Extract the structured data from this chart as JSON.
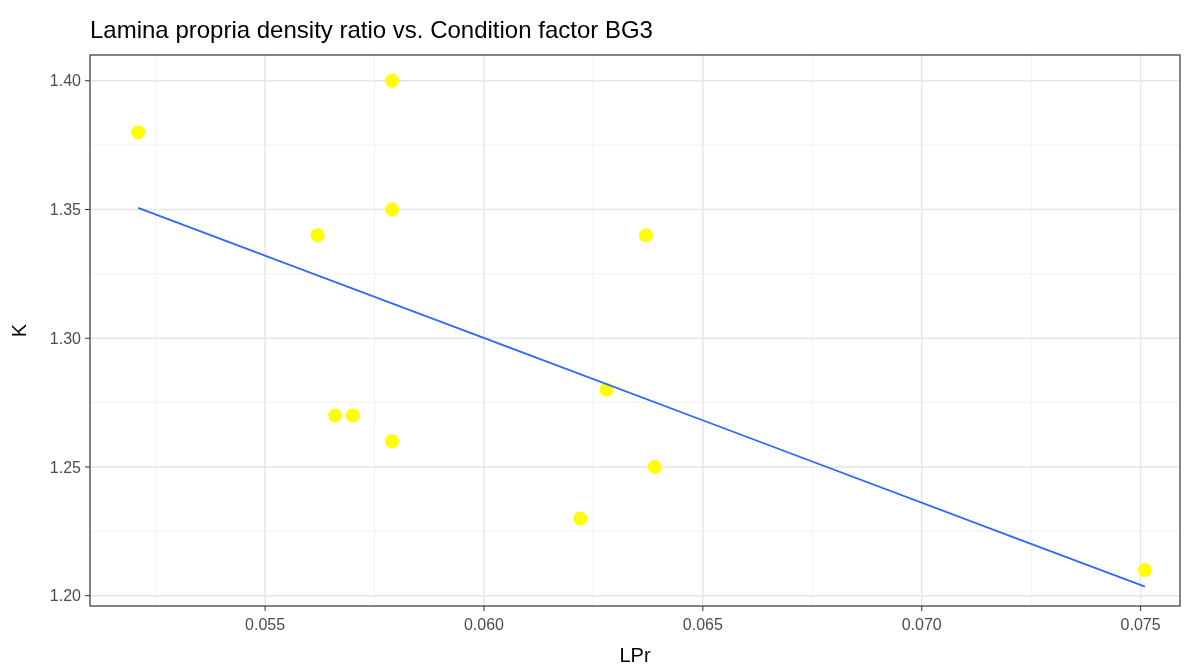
{
  "chart_data": {
    "type": "scatter",
    "title": "Lamina propria density ratio vs. Condition factor BG3",
    "xlabel": "LPr",
    "ylabel": "K",
    "xlim": [
      0.051,
      0.0759
    ],
    "ylim": [
      1.196,
      1.41
    ],
    "xticks": [
      {
        "value": 0.055,
        "label": "0.055"
      },
      {
        "value": 0.06,
        "label": "0.060"
      },
      {
        "value": 0.065,
        "label": "0.065"
      },
      {
        "value": 0.07,
        "label": "0.070"
      },
      {
        "value": 0.075,
        "label": "0.075"
      }
    ],
    "yticks": [
      {
        "value": 1.2,
        "label": "1.20"
      },
      {
        "value": 1.25,
        "label": "1.25"
      },
      {
        "value": 1.3,
        "label": "1.30"
      },
      {
        "value": 1.35,
        "label": "1.35"
      },
      {
        "value": 1.4,
        "label": "1.40"
      }
    ],
    "grid": true,
    "series": [
      {
        "marker": "circle",
        "color": "#ffff00",
        "x": [
          0.0521,
          0.0579,
          0.0579,
          0.0562,
          0.0566,
          0.057,
          0.0579,
          0.0622,
          0.0628,
          0.0637,
          0.0639,
          0.0751
        ],
        "values": [
          1.38,
          1.4,
          1.35,
          1.34,
          1.27,
          1.27,
          1.26,
          1.23,
          1.28,
          1.34,
          1.25,
          1.21
        ]
      },
      {
        "type": "line",
        "color": "#3366ff",
        "line_style": "solid",
        "x": [
          0.0521,
          0.0751
        ],
        "values": [
          1.3506,
          1.2035
        ]
      }
    ]
  }
}
